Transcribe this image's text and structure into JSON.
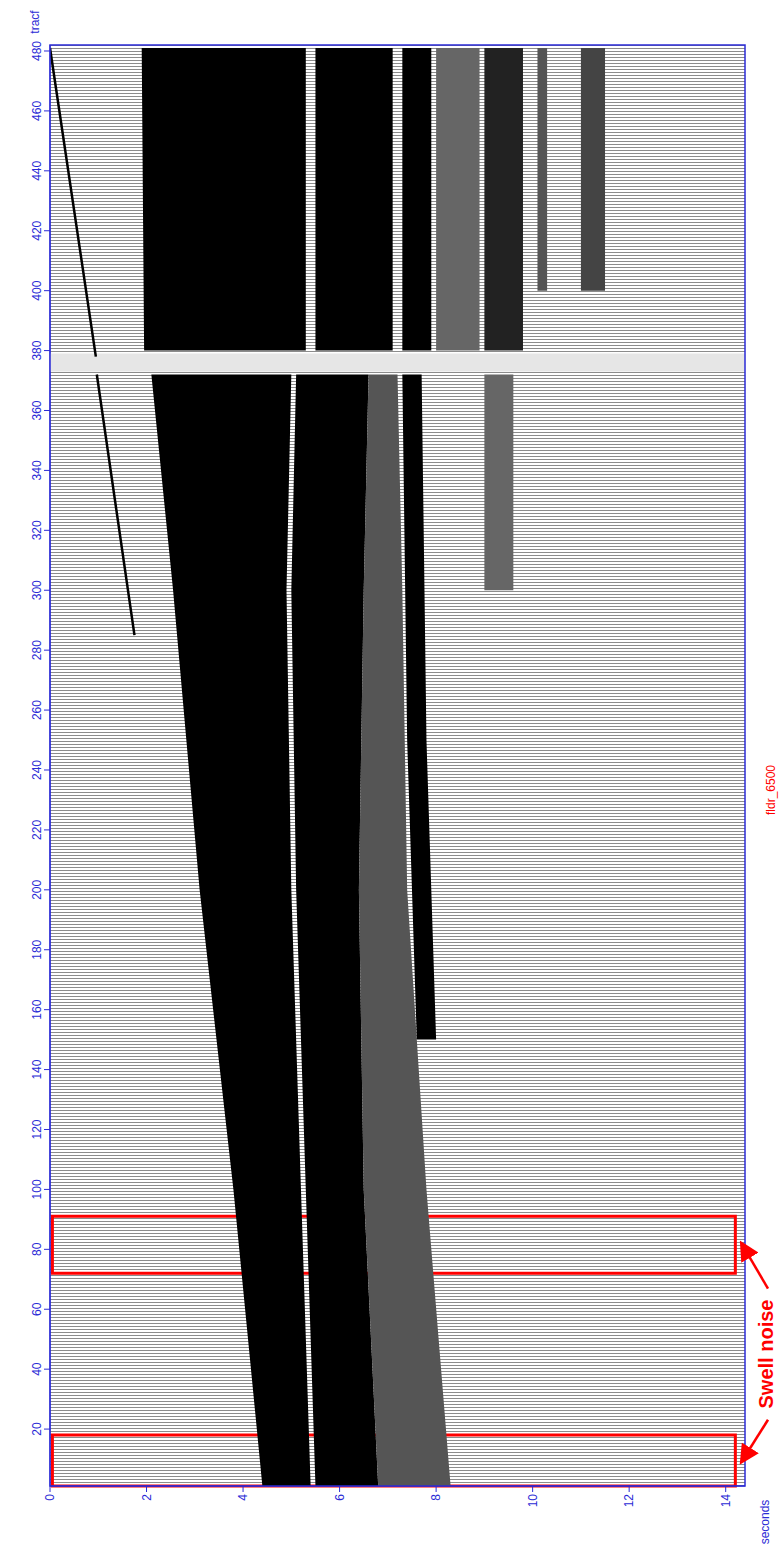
{
  "chart_data": {
    "type": "seismic",
    "title": "fldr_6500",
    "x_label": "seconds",
    "y_label": "tracf",
    "xlim": [
      0,
      14.4
    ],
    "xticks": [
      0,
      2,
      4,
      6,
      8,
      10,
      12,
      14
    ],
    "ylim": [
      1,
      482
    ],
    "yticks": [
      20,
      40,
      60,
      80,
      100,
      120,
      140,
      160,
      180,
      200,
      220,
      240,
      260,
      280,
      300,
      320,
      340,
      360,
      380,
      400,
      420,
      440,
      460,
      480
    ],
    "series": [
      {
        "type": "area",
        "color": "#e6e6e6",
        "x": [
          0,
          14.4,
          14.4,
          0
        ],
        "values": [
          373,
          373,
          379,
          379
        ]
      },
      {
        "type": "line",
        "color": "#000000",
        "x": [
          0.0,
          0.95
        ],
        "values": [
          481,
          378
        ]
      },
      {
        "type": "line",
        "color": "#000000",
        "x": [
          0.97,
          1.75
        ],
        "values": [
          372,
          285
        ]
      },
      {
        "type": "area",
        "color": "#000000",
        "x": [
          4.4,
          3.8,
          3.1,
          2.55,
          2.1,
          5.0,
          4.9,
          5.0,
          5.2,
          5.4
        ],
        "values": [
          1,
          100,
          200,
          300,
          372,
          372,
          300,
          200,
          100,
          1
        ]
      },
      {
        "type": "area",
        "color": "#000000",
        "x": [
          5.5,
          5.3,
          5.1,
          5.0,
          5.1,
          6.6,
          6.5,
          6.4,
          6.5,
          6.8
        ],
        "values": [
          1,
          100,
          200,
          300,
          372,
          372,
          300,
          200,
          100,
          1
        ]
      },
      {
        "type": "area",
        "color": "#555555",
        "x": [
          6.8,
          6.5,
          6.4,
          6.5,
          6.6,
          7.2,
          7.3,
          7.4,
          7.8,
          8.3
        ],
        "values": [
          1,
          100,
          200,
          300,
          372,
          372,
          300,
          200,
          100,
          1
        ]
      },
      {
        "type": "area",
        "color": "#000000",
        "x": [
          7.6,
          7.4,
          7.3,
          7.7,
          7.8,
          8.0
        ],
        "values": [
          150,
          250,
          372,
          372,
          250,
          150
        ]
      },
      {
        "type": "area",
        "color": "#000000",
        "x": [
          1.95,
          1.9,
          5.3,
          5.3
        ],
        "values": [
          380,
          481,
          481,
          380
        ]
      },
      {
        "type": "area",
        "color": "#000000",
        "x": [
          5.5,
          5.5,
          7.1,
          7.1
        ],
        "values": [
          380,
          481,
          481,
          380
        ]
      },
      {
        "type": "area",
        "color": "#000000",
        "x": [
          7.3,
          7.3,
          7.9,
          7.9
        ],
        "values": [
          380,
          481,
          481,
          380
        ]
      },
      {
        "type": "area",
        "color": "#666666",
        "x": [
          8.0,
          8.0,
          8.9,
          8.9
        ],
        "values": [
          380,
          481,
          481,
          380
        ]
      },
      {
        "type": "area",
        "color": "#222222",
        "x": [
          9.0,
          9.0,
          9.8,
          9.8
        ],
        "values": [
          380,
          481,
          481,
          380
        ]
      },
      {
        "type": "area",
        "color": "#555555",
        "x": [
          10.1,
          10.1,
          10.3,
          10.3
        ],
        "values": [
          400,
          481,
          481,
          400
        ]
      },
      {
        "type": "area",
        "color": "#444444",
        "x": [
          11.0,
          11.0,
          11.5,
          11.5
        ],
        "values": [
          400,
          481,
          481,
          400
        ]
      },
      {
        "type": "area",
        "color": "#666666",
        "x": [
          9.0,
          9.0,
          9.6,
          9.6
        ],
        "values": [
          300,
          372,
          372,
          300
        ]
      }
    ],
    "annotations": [
      {
        "text": "Swell noise",
        "color": "#ff0000",
        "regions": [
          {
            "xlim": [
              0.05,
              14.2
            ],
            "ylim": [
              1,
              18
            ]
          },
          {
            "xlim": [
              0.05,
              14.2
            ],
            "ylim": [
              72,
              91
            ]
          }
        ]
      }
    ]
  }
}
